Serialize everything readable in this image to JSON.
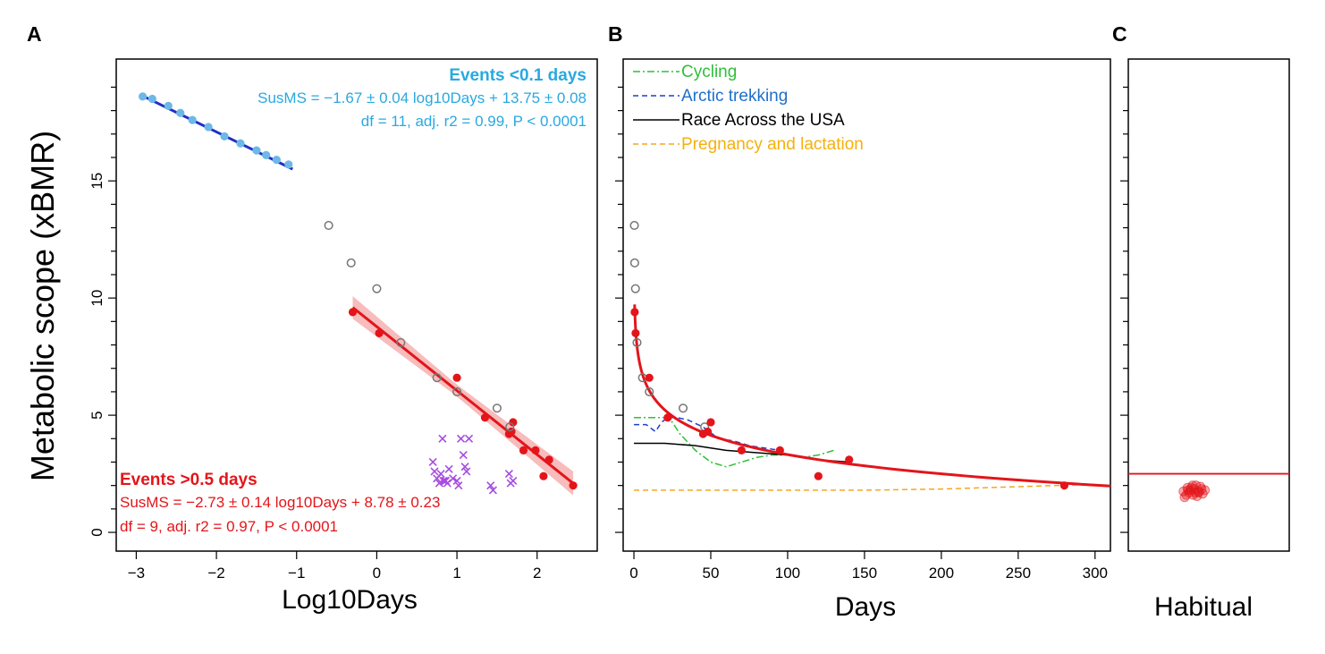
{
  "figure": {
    "panel_letters": [
      "A",
      "B",
      "C"
    ],
    "ylabel": "Metabolic scope (xBMR)"
  },
  "chart_data": [
    {
      "panel": "A",
      "type": "scatter",
      "xlabel": "Log10Days",
      "ylabel": "Metabolic scope (xBMR)",
      "xlim": [
        -3.25,
        2.75
      ],
      "ylim": [
        -0.8,
        20.2
      ],
      "xticks": [
        "-3",
        "-2",
        "-1",
        "0",
        "1",
        "2"
      ],
      "yticks": [
        "0",
        "5",
        "10",
        "15"
      ],
      "grid": false,
      "annotations": {
        "short_title": "Events <0.1 days",
        "short_eq": "SusMS = −1.67 ± 0.04 log10Days + 13.75 ± 0.08",
        "short_stats": "df = 11, adj. r2 = 0.99, P < 0.0001",
        "long_title": "Events >0.5 days",
        "long_eq": "SusMS = −2.73 ± 0.14 log10Days + 8.78 ± 0.23",
        "long_stats": "df = 9, adj. r2 = 0.97, P < 0.0001"
      },
      "series": [
        {
          "name": "Events <0.1 days",
          "marker": "filled-circle",
          "color": "#6cb8e6",
          "x": [
            -2.92,
            -2.8,
            -2.6,
            -2.45,
            -2.3,
            -2.1,
            -1.9,
            -1.7,
            -1.5,
            -1.38,
            -1.25,
            -1.1
          ],
          "y": [
            18.6,
            18.5,
            18.2,
            17.9,
            17.6,
            17.3,
            16.9,
            16.6,
            16.3,
            16.1,
            15.9,
            15.7
          ]
        },
        {
          "name": "Events >0.5 days",
          "marker": "filled-circle",
          "color": "#e3151a",
          "x": [
            -0.3,
            0.03,
            1.0,
            1.35,
            1.65,
            1.7,
            1.68,
            1.83,
            1.98,
            2.08,
            2.15,
            2.45
          ],
          "y": [
            9.4,
            8.5,
            6.6,
            4.9,
            4.2,
            4.7,
            4.3,
            3.5,
            3.5,
            2.4,
            3.1,
            2.0
          ]
        },
        {
          "name": "open circles",
          "marker": "open-circle",
          "color": "#777777",
          "x": [
            -0.6,
            -0.32,
            0.0,
            0.3,
            0.75,
            1.0,
            1.5,
            1.66
          ],
          "y": [
            13.1,
            11.5,
            10.4,
            8.1,
            6.6,
            6.0,
            5.3,
            4.5
          ]
        },
        {
          "name": "crosses",
          "marker": "cross",
          "color": "#a64de0",
          "x": [
            0.7,
            0.72,
            0.75,
            0.78,
            0.8,
            0.82,
            0.85,
            0.88,
            0.9,
            0.95,
            1.0,
            1.02,
            1.05,
            1.08,
            1.1,
            1.12,
            1.15,
            1.42,
            1.45,
            1.65,
            1.67,
            1.7,
            0.83,
            0.86
          ],
          "y": [
            3.0,
            2.6,
            2.3,
            2.1,
            2.5,
            4.0,
            2.2,
            2.1,
            2.7,
            2.3,
            2.2,
            2.0,
            4.0,
            3.3,
            2.8,
            2.6,
            4.0,
            2.0,
            1.8,
            2.5,
            2.1,
            2.2,
            2.2,
            2.2
          ]
        }
      ],
      "fits": [
        {
          "series": "Events <0.1 days",
          "x": [
            -2.92,
            -1.05
          ],
          "slope": -1.67,
          "intercept": 13.75,
          "color": "#1f2fc7"
        },
        {
          "series": "Events >0.5 days",
          "x": [
            -0.3,
            2.45
          ],
          "slope": -2.73,
          "intercept": 8.78,
          "color": "#e3151a"
        }
      ],
      "colors": {
        "short_text": "#29a9e0",
        "long_text": "#e3151a",
        "band": "#f4a6a6"
      }
    },
    {
      "panel": "B",
      "type": "scatter",
      "xlabel": "Days",
      "xlim": [
        -7,
        310
      ],
      "ylim": [
        -0.8,
        20.2
      ],
      "xticks": [
        "0",
        "50",
        "100",
        "150",
        "200",
        "250",
        "300"
      ],
      "grid": false,
      "legend_position": "top-left",
      "series": [
        {
          "name": "Cycling",
          "type": "line",
          "color": "#2fbf3a",
          "dash": "dash-dot",
          "x": [
            0,
            10,
            20,
            25,
            30,
            40,
            50,
            60,
            70,
            80,
            90,
            100,
            110,
            120,
            130
          ],
          "y": [
            4.9,
            4.9,
            4.9,
            4.7,
            4.2,
            3.5,
            3.0,
            2.8,
            3.0,
            3.2,
            3.3,
            3.3,
            3.2,
            3.3,
            3.5
          ]
        },
        {
          "name": "Arctic trekking",
          "type": "line",
          "color": "#1f3fd0",
          "dash": "dashed",
          "x": [
            0,
            8,
            14,
            18,
            22,
            28,
            35,
            45,
            55,
            65,
            75,
            85,
            95
          ],
          "y": [
            4.6,
            4.6,
            4.3,
            4.7,
            4.9,
            4.9,
            4.8,
            4.5,
            4.0,
            3.9,
            3.7,
            3.6,
            3.5
          ]
        },
        {
          "name": "Race Across the USA",
          "type": "line",
          "color": "#000000",
          "dash": "solid",
          "x": [
            0,
            20,
            40,
            60,
            80,
            100,
            120,
            140
          ],
          "y": [
            3.8,
            3.8,
            3.7,
            3.5,
            3.4,
            3.3,
            3.1,
            3.0
          ]
        },
        {
          "name": "Pregnancy and lactation",
          "type": "line",
          "color": "#f5a623",
          "dash": "dashed",
          "x": [
            0,
            50,
            100,
            150,
            200,
            250,
            300
          ],
          "y": [
            1.8,
            1.8,
            1.8,
            1.8,
            1.85,
            1.95,
            2.05
          ]
        },
        {
          "name": "open circles",
          "marker": "open-circle",
          "color": "#777777",
          "x": [
            0.3,
            0.5,
            1.0,
            2.0,
            5.6,
            10.0,
            32.0,
            46.0
          ],
          "y": [
            13.1,
            11.5,
            10.4,
            8.1,
            6.6,
            6.0,
            5.3,
            4.5
          ]
        },
        {
          "name": "filled circles",
          "marker": "filled-circle",
          "color": "#e3151a",
          "x": [
            0.5,
            1.1,
            10.0,
            22.0,
            45.0,
            50.0,
            48.0,
            70.0,
            95.0,
            120.0,
            140.0,
            280.0
          ],
          "y": [
            9.4,
            8.5,
            6.6,
            4.9,
            4.2,
            4.7,
            4.3,
            3.5,
            3.5,
            2.4,
            3.1,
            2.0
          ]
        }
      ],
      "fit_color": "#e3151a"
    },
    {
      "panel": "C",
      "type": "scatter",
      "xlabel": "Habitual",
      "ylim": [
        -0.8,
        20.2
      ],
      "reference_line_y": 2.5,
      "reference_color": "#e3151a",
      "cluster": {
        "color": "#e3151a",
        "y": [
          1.5,
          1.6,
          1.7,
          1.8,
          1.9,
          2.0,
          1.65,
          1.75,
          1.85,
          1.95,
          1.55,
          1.7,
          1.8,
          1.9,
          1.6,
          1.75,
          1.85,
          2.0,
          1.7,
          1.8
        ],
        "jitter": [
          0.3,
          0.45,
          0.55,
          0.4,
          0.35,
          0.5,
          0.62,
          0.28,
          0.47,
          0.58,
          0.52,
          0.38,
          0.66,
          0.42,
          0.33,
          0.55,
          0.6,
          0.44,
          0.49,
          0.36
        ]
      }
    }
  ]
}
